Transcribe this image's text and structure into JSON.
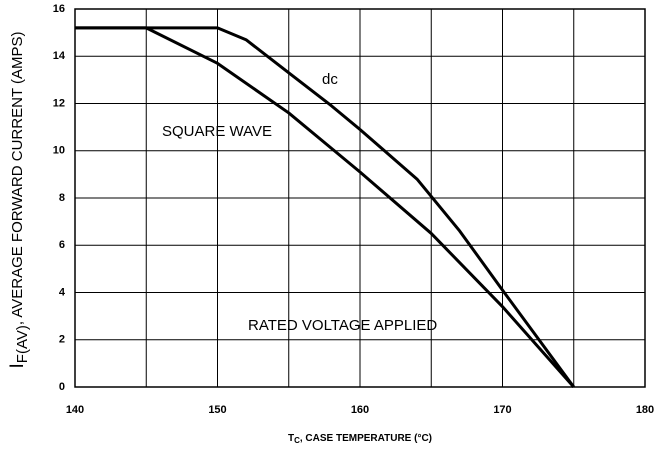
{
  "chart_data": {
    "type": "line",
    "x_label": {
      "main": "T",
      "sub": "C",
      "rest": ", CASE TEMPERATURE (°C)"
    },
    "y_label": {
      "main": "I",
      "sub": "F(AV)",
      "rest": ", AVERAGE FORWARD CURRENT (AMPS)"
    },
    "annotation": "RATED VOLTAGE APPLIED",
    "xlim": [
      140,
      180
    ],
    "xticks": [
      140,
      150,
      160,
      170,
      180
    ],
    "xgrid_minor": [
      145,
      155,
      165,
      175
    ],
    "ylim": [
      0,
      16
    ],
    "yticks": [
      0,
      2,
      4,
      6,
      8,
      10,
      12,
      14,
      16
    ],
    "grid": true,
    "series": [
      {
        "name": "dc",
        "color": "#000000",
        "x": [
          140,
          150,
          152,
          155,
          158,
          160,
          164,
          167,
          170,
          175
        ],
        "values": [
          15.2,
          15.2,
          14.7,
          13.3,
          11.9,
          10.9,
          8.8,
          6.6,
          4.1,
          0
        ]
      },
      {
        "name": "SQUARE WAVE",
        "color": "#000000",
        "x": [
          140,
          145,
          150,
          155,
          158,
          160,
          165,
          170,
          175
        ],
        "values": [
          15.2,
          15.2,
          13.7,
          11.6,
          10.1,
          9.1,
          6.5,
          3.4,
          0
        ]
      }
    ]
  }
}
